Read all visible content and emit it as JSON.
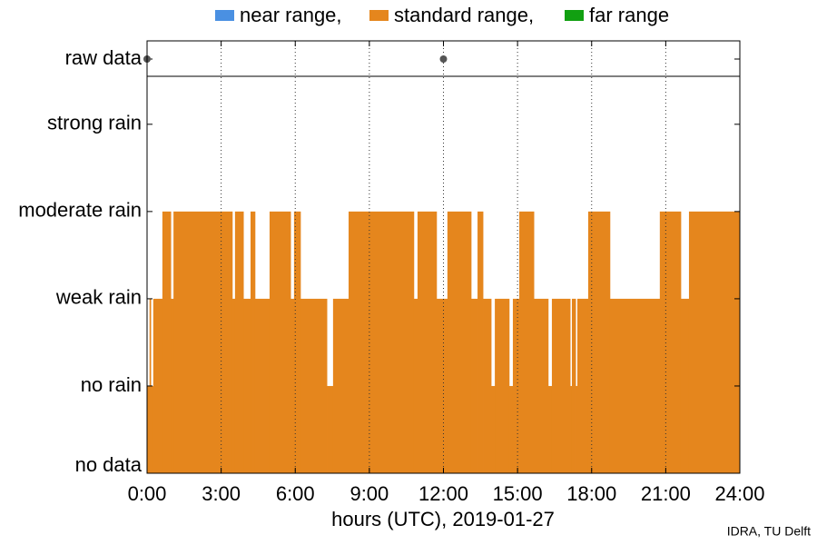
{
  "chart_data": {
    "type": "step",
    "legend": [
      {
        "name": "near range,",
        "color": "#4a90e2"
      },
      {
        "name": "standard range,",
        "color": "#e5861d"
      },
      {
        "name": "far range",
        "color": "#11a011"
      }
    ],
    "series": [
      {
        "name": "standard range,",
        "color": "#e5861d",
        "x": [
          0,
          0.1,
          0.15,
          0.25,
          0.62,
          0.96,
          1.07,
          3.45,
          3.56,
          3.9,
          4.19,
          4.37,
          4.96,
          5.81,
          5.95,
          6.21,
          7.28,
          7.53,
          8.16,
          10.8,
          10.95,
          11.72,
          12.16,
          13.12,
          13.38,
          13.6,
          13.93,
          14.08,
          14.66,
          14.81,
          15.07,
          15.66,
          16.24,
          16.39,
          17.13,
          17.2,
          17.35,
          17.42,
          17.86,
          18.74,
          20.76,
          21.61,
          21.94
        ],
        "values": [
          1,
          2,
          1,
          2,
          3,
          2,
          3,
          2,
          3,
          2,
          3,
          2,
          3,
          2,
          3,
          2,
          1,
          2,
          3,
          2,
          3,
          2,
          3,
          2,
          3,
          2,
          1,
          2,
          1,
          2,
          3,
          2,
          1,
          2,
          1,
          2,
          1,
          2,
          3,
          2,
          3,
          2,
          3
        ]
      }
    ],
    "raw_data": {
      "label": "raw data",
      "x": [
        0,
        12
      ]
    },
    "xlabel": "hours (UTC), 2019-01-27",
    "xlim": [
      0,
      24
    ],
    "xticks": [
      {
        "value": 0,
        "label": "0:00"
      },
      {
        "value": 3,
        "label": "3:00"
      },
      {
        "value": 6,
        "label": "6:00"
      },
      {
        "value": 9,
        "label": "9:00"
      },
      {
        "value": 12,
        "label": "12:00"
      },
      {
        "value": 15,
        "label": "15:00"
      },
      {
        "value": 18,
        "label": "18:00"
      },
      {
        "value": 21,
        "label": "21:00"
      },
      {
        "value": 24,
        "label": "24:00"
      }
    ],
    "ylim": [
      0,
      4.55
    ],
    "yticks": [
      {
        "value": 0,
        "label": "no data"
      },
      {
        "value": 1,
        "label": "no rain"
      },
      {
        "value": 2,
        "label": "weak rain"
      },
      {
        "value": 3,
        "label": "moderate rain"
      },
      {
        "value": 4,
        "label": "strong rain"
      }
    ],
    "grid": true,
    "credit": "IDRA, TU Delft"
  }
}
